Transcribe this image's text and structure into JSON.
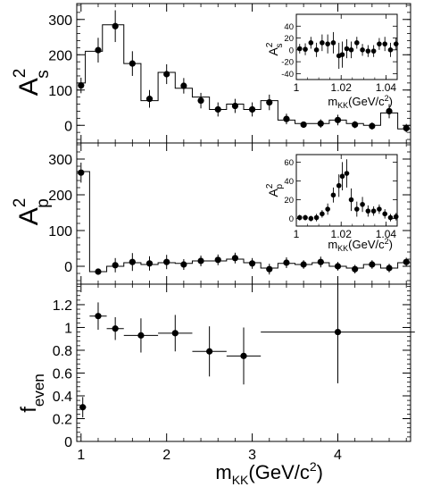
{
  "chart_data": [
    {
      "type": "scatter",
      "panel": "As2",
      "ylabel_main": "A",
      "ylabel_sup": "2",
      "ylabel_sub": "s",
      "ylim": [
        -50,
        345
      ],
      "yticks": [
        0,
        100,
        200,
        300
      ],
      "xlim": [
        0.95,
        4.85
      ],
      "grid": false,
      "histogram_steps": [
        {
          "x0": 0.95,
          "x1": 1.05,
          "y": 120
        },
        {
          "x0": 1.05,
          "x1": 1.25,
          "y": 210
        },
        {
          "x0": 1.25,
          "x1": 1.5,
          "y": 285
        },
        {
          "x0": 1.5,
          "x1": 1.7,
          "y": 175
        },
        {
          "x0": 1.7,
          "x1": 1.9,
          "y": 70
        },
        {
          "x0": 1.9,
          "x1": 2.1,
          "y": 150
        },
        {
          "x0": 2.1,
          "x1": 2.3,
          "y": 105
        },
        {
          "x0": 2.3,
          "x1": 2.5,
          "y": 80
        },
        {
          "x0": 2.5,
          "x1": 2.7,
          "y": 45
        },
        {
          "x0": 2.7,
          "x1": 2.9,
          "y": 60
        },
        {
          "x0": 2.9,
          "x1": 3.1,
          "y": 45
        },
        {
          "x0": 3.1,
          "x1": 3.3,
          "y": 70
        },
        {
          "x0": 3.3,
          "x1": 3.5,
          "y": 15
        },
        {
          "x0": 3.5,
          "x1": 3.7,
          "y": 5
        },
        {
          "x0": 3.7,
          "x1": 3.9,
          "y": 5
        },
        {
          "x0": 3.9,
          "x1": 4.1,
          "y": 15
        },
        {
          "x0": 4.1,
          "x1": 4.3,
          "y": 5
        },
        {
          "x0": 4.3,
          "x1": 4.5,
          "y": 0
        },
        {
          "x0": 4.5,
          "x1": 4.7,
          "y": 35
        },
        {
          "x0": 4.7,
          "x1": 4.85,
          "y": -10
        }
      ],
      "points": [
        {
          "x": 1.0,
          "y": 113,
          "err": 22
        },
        {
          "x": 1.2,
          "y": 213,
          "err": 35
        },
        {
          "x": 1.4,
          "y": 281,
          "err": 45
        },
        {
          "x": 1.6,
          "y": 175,
          "err": 35
        },
        {
          "x": 1.8,
          "y": 75,
          "err": 25
        },
        {
          "x": 2.0,
          "y": 145,
          "err": 28
        },
        {
          "x": 2.2,
          "y": 112,
          "err": 22
        },
        {
          "x": 2.4,
          "y": 70,
          "err": 22
        },
        {
          "x": 2.6,
          "y": 45,
          "err": 20
        },
        {
          "x": 2.8,
          "y": 55,
          "err": 20
        },
        {
          "x": 3.0,
          "y": 45,
          "err": 20
        },
        {
          "x": 3.2,
          "y": 65,
          "err": 22
        },
        {
          "x": 3.4,
          "y": 18,
          "err": 15
        },
        {
          "x": 3.6,
          "y": 2,
          "err": 8
        },
        {
          "x": 3.8,
          "y": 5,
          "err": 12
        },
        {
          "x": 4.0,
          "y": 15,
          "err": 15
        },
        {
          "x": 4.2,
          "y": 2,
          "err": 10
        },
        {
          "x": 4.4,
          "y": -2,
          "err": 10
        },
        {
          "x": 4.6,
          "y": 40,
          "err": 20
        },
        {
          "x": 4.8,
          "y": -8,
          "err": 12
        }
      ],
      "inset": {
        "ylabel_main": "A",
        "ylabel_sup": "2",
        "ylabel_sub": "s",
        "xlabel_main": "m",
        "xlabel_sub": "KK",
        "xlabel_rest": "(GeV/c",
        "xlabel_sup": "2",
        "xlabel_close": ")",
        "xlim": [
          1.0,
          1.045
        ],
        "ylim": [
          -50,
          60
        ],
        "xticks": [
          1,
          1.02,
          1.04
        ],
        "xtick_labels": [
          "1",
          "1.02",
          "1.04"
        ],
        "yticks": [
          -40,
          -20,
          0,
          20,
          40
        ],
        "ytick_labels": [
          "-40",
          "-20",
          "0",
          "20",
          "40"
        ],
        "points": [
          {
            "x": 1.0015,
            "y": 2,
            "err": 8
          },
          {
            "x": 1.004,
            "y": 1,
            "err": 10
          },
          {
            "x": 1.0065,
            "y": 12,
            "err": 10
          },
          {
            "x": 1.009,
            "y": 0,
            "err": 12
          },
          {
            "x": 1.0115,
            "y": 12,
            "err": 14
          },
          {
            "x": 1.014,
            "y": 10,
            "err": 16
          },
          {
            "x": 1.0165,
            "y": 12,
            "err": 18
          },
          {
            "x": 1.019,
            "y": -10,
            "err": 22
          },
          {
            "x": 1.0205,
            "y": -8,
            "err": 22
          },
          {
            "x": 1.0225,
            "y": 2,
            "err": 16
          },
          {
            "x": 1.0245,
            "y": 0,
            "err": 14
          },
          {
            "x": 1.027,
            "y": 12,
            "err": 10
          },
          {
            "x": 1.0295,
            "y": 0,
            "err": 10
          },
          {
            "x": 1.032,
            "y": -2,
            "err": 10
          },
          {
            "x": 1.0345,
            "y": -2,
            "err": 10
          },
          {
            "x": 1.037,
            "y": 10,
            "err": 10
          },
          {
            "x": 1.0395,
            "y": 10,
            "err": 12
          },
          {
            "x": 1.042,
            "y": 0,
            "err": 12
          },
          {
            "x": 1.0445,
            "y": 10,
            "err": 10
          }
        ]
      }
    },
    {
      "type": "scatter",
      "panel": "Ap2",
      "ylabel_main": "A",
      "ylabel_sup": "2",
      "ylabel_sub": "p",
      "ylim": [
        -50,
        345
      ],
      "yticks": [
        0,
        100,
        200,
        300
      ],
      "xlim": [
        0.95,
        4.85
      ],
      "grid": false,
      "histogram_steps": [
        {
          "x0": 0.95,
          "x1": 1.1,
          "y": 265
        },
        {
          "x0": 1.1,
          "x1": 1.3,
          "y": -15
        },
        {
          "x0": 1.3,
          "x1": 1.5,
          "y": 0
        },
        {
          "x0": 1.5,
          "x1": 1.7,
          "y": 10
        },
        {
          "x0": 1.7,
          "x1": 1.9,
          "y": 5
        },
        {
          "x0": 1.9,
          "x1": 2.1,
          "y": 10
        },
        {
          "x0": 2.1,
          "x1": 2.3,
          "y": 8
        },
        {
          "x0": 2.3,
          "x1": 2.5,
          "y": 15
        },
        {
          "x0": 2.5,
          "x1": 2.7,
          "y": 15
        },
        {
          "x0": 2.7,
          "x1": 2.9,
          "y": 20
        },
        {
          "x0": 2.9,
          "x1": 3.1,
          "y": 10
        },
        {
          "x0": 3.1,
          "x1": 3.3,
          "y": -5
        },
        {
          "x0": 3.3,
          "x1": 3.5,
          "y": 8
        },
        {
          "x0": 3.5,
          "x1": 3.7,
          "y": 5
        },
        {
          "x0": 3.7,
          "x1": 3.9,
          "y": 10
        },
        {
          "x0": 3.9,
          "x1": 4.1,
          "y": 0
        },
        {
          "x0": 4.1,
          "x1": 4.3,
          "y": -5
        },
        {
          "x0": 4.3,
          "x1": 4.5,
          "y": 5
        },
        {
          "x0": 4.5,
          "x1": 4.7,
          "y": -5
        },
        {
          "x0": 4.7,
          "x1": 4.85,
          "y": 10
        }
      ],
      "points": [
        {
          "x": 1.0,
          "y": 262,
          "err": 28
        },
        {
          "x": 1.2,
          "y": -15,
          "err": 8
        },
        {
          "x": 1.4,
          "y": 3,
          "err": 20
        },
        {
          "x": 1.6,
          "y": 12,
          "err": 25
        },
        {
          "x": 1.8,
          "y": 8,
          "err": 20
        },
        {
          "x": 2.0,
          "y": 12,
          "err": 20
        },
        {
          "x": 2.2,
          "y": 5,
          "err": 15
        },
        {
          "x": 2.4,
          "y": 15,
          "err": 15
        },
        {
          "x": 2.6,
          "y": 18,
          "err": 15
        },
        {
          "x": 2.8,
          "y": 23,
          "err": 15
        },
        {
          "x": 3.0,
          "y": 8,
          "err": 15
        },
        {
          "x": 3.2,
          "y": -8,
          "err": 15
        },
        {
          "x": 3.4,
          "y": 10,
          "err": 15
        },
        {
          "x": 3.6,
          "y": 5,
          "err": 12
        },
        {
          "x": 3.8,
          "y": 12,
          "err": 15
        },
        {
          "x": 4.0,
          "y": 0,
          "err": 12
        },
        {
          "x": 4.2,
          "y": -8,
          "err": 12
        },
        {
          "x": 4.4,
          "y": 5,
          "err": 12
        },
        {
          "x": 4.6,
          "y": -5,
          "err": 12
        },
        {
          "x": 4.8,
          "y": 12,
          "err": 12
        }
      ],
      "inset": {
        "ylabel_main": "A",
        "ylabel_sup": "2",
        "ylabel_sub": "p",
        "xlabel_main": "m",
        "xlabel_sub": "KK",
        "xlabel_rest": "(GeV/c",
        "xlabel_sup": "2",
        "xlabel_close": ")",
        "xlim": [
          1.0,
          1.045
        ],
        "ylim": [
          -8,
          68
        ],
        "xticks": [
          1,
          1.02,
          1.04
        ],
        "xtick_labels": [
          "1",
          "1.02",
          "1.04"
        ],
        "yticks": [
          0,
          20,
          40,
          60
        ],
        "ytick_labels": [
          "0",
          "20",
          "40",
          "60"
        ],
        "points": [
          {
            "x": 1.0015,
            "y": 1,
            "err": 3
          },
          {
            "x": 1.004,
            "y": 1,
            "err": 3
          },
          {
            "x": 1.0065,
            "y": 0,
            "err": 3
          },
          {
            "x": 1.009,
            "y": 1,
            "err": 4
          },
          {
            "x": 1.0115,
            "y": 5,
            "err": 4
          },
          {
            "x": 1.014,
            "y": 10,
            "err": 6
          },
          {
            "x": 1.0165,
            "y": 25,
            "err": 8
          },
          {
            "x": 1.019,
            "y": 35,
            "err": 12
          },
          {
            "x": 1.0205,
            "y": 45,
            "err": 15
          },
          {
            "x": 1.0225,
            "y": 48,
            "err": 15
          },
          {
            "x": 1.0245,
            "y": 20,
            "err": 12
          },
          {
            "x": 1.027,
            "y": 10,
            "err": 8
          },
          {
            "x": 1.0295,
            "y": 15,
            "err": 8
          },
          {
            "x": 1.032,
            "y": 8,
            "err": 6
          },
          {
            "x": 1.0345,
            "y": 8,
            "err": 5
          },
          {
            "x": 1.037,
            "y": 10,
            "err": 5
          },
          {
            "x": 1.0395,
            "y": 5,
            "err": 5
          },
          {
            "x": 1.042,
            "y": 1,
            "err": 4
          },
          {
            "x": 1.0445,
            "y": 2,
            "err": 4
          }
        ]
      }
    },
    {
      "type": "scatter",
      "panel": "feven",
      "ylabel_main": "f",
      "ylabel_sub": "even",
      "ylim": [
        0,
        1.38
      ],
      "yticks": [
        0,
        0.2,
        0.4,
        0.6,
        0.8,
        1,
        1.2
      ],
      "ytick_labels": [
        "0",
        "0.2",
        "0.4",
        "0.6",
        "0.8",
        "1",
        "1.2"
      ],
      "xlim": [
        0.95,
        4.85
      ],
      "xticks": [
        1,
        2,
        3,
        4
      ],
      "xtick_labels": [
        "1",
        "2",
        "3",
        "4"
      ],
      "xlabel_main": "m",
      "xlabel_sub": "KK",
      "xlabel_rest": "(GeV/c",
      "xlabel_sup": "2",
      "xlabel_close": ")",
      "grid": false,
      "points": [
        {
          "x": 1.02,
          "xerr_lo": 0.04,
          "xerr_hi": 0.04,
          "y": 0.3,
          "err": 0.09
        },
        {
          "x": 1.2,
          "xerr_lo": 0.1,
          "xerr_hi": 0.1,
          "y": 1.1,
          "err": 0.12
        },
        {
          "x": 1.4,
          "xerr_lo": 0.1,
          "xerr_hi": 0.1,
          "y": 0.99,
          "err": 0.1
        },
        {
          "x": 1.7,
          "xerr_lo": 0.2,
          "xerr_hi": 0.2,
          "y": 0.93,
          "err": 0.15
        },
        {
          "x": 2.1,
          "xerr_lo": 0.2,
          "xerr_hi": 0.2,
          "y": 0.95,
          "err": 0.16
        },
        {
          "x": 2.5,
          "xerr_lo": 0.2,
          "xerr_hi": 0.2,
          "y": 0.79,
          "err": 0.22
        },
        {
          "x": 2.9,
          "xerr_lo": 0.2,
          "xerr_hi": 0.2,
          "y": 0.75,
          "err": 0.25
        },
        {
          "x": 4.0,
          "xerr_lo": 0.9,
          "xerr_hi": 0.9,
          "y": 0.96,
          "err": 0.45
        }
      ]
    }
  ]
}
